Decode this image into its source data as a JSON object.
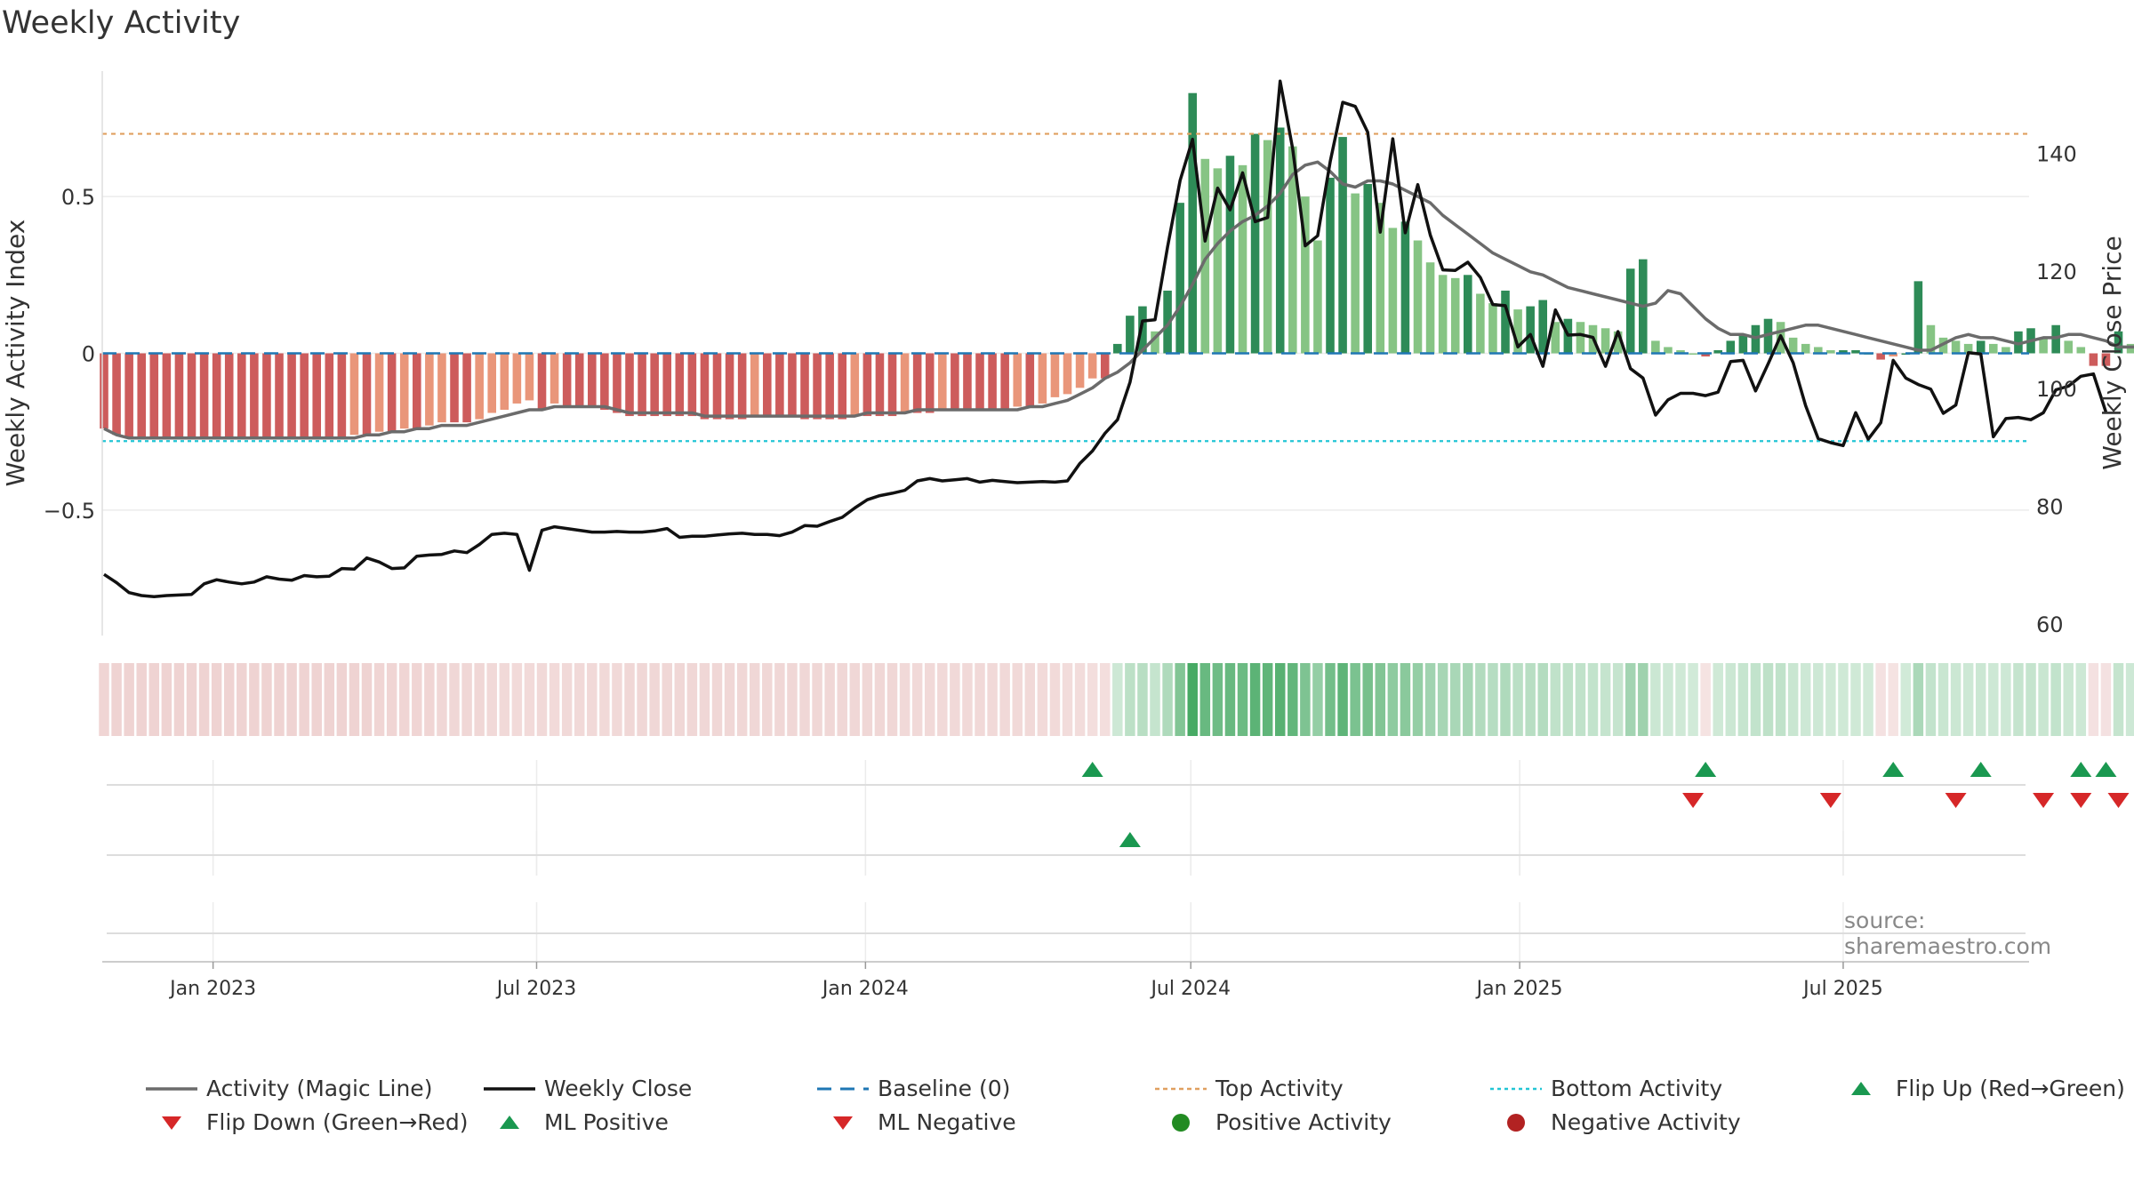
{
  "title": "Weekly Activity",
  "source": "source: sharemaestro.com",
  "colors": {
    "pos_dark": "#2e8b57",
    "pos_light": "#86c484",
    "neg_dark": "#cd5c5c",
    "neg_light": "#e9967a",
    "magic": "#6b6b6b",
    "close": "#111111",
    "baseline": "#1f77b4",
    "top": "#e0a060",
    "bottom": "#22c5d5",
    "up": "#1a9850",
    "down": "#d62728",
    "pos_dot": "#228b22",
    "neg_dot": "#b22222"
  },
  "chart_data": {
    "type": "bar",
    "title": "Weekly Activity",
    "ylabel": "Weekly Activity Index",
    "y2label": "Weekly Close Price",
    "ylim": [
      -0.9,
      0.9
    ],
    "y2lim": [
      58,
      154
    ],
    "yticks": [
      -0.5,
      0,
      0.5
    ],
    "ytick_labels": [
      "−0.5",
      "0",
      "0.5"
    ],
    "y2ticks": [
      60,
      80,
      100,
      120,
      140
    ],
    "xlim": [
      "2022-10-31",
      "2025-10-13"
    ],
    "xticks": [
      "2023-01-01",
      "2023-07-01",
      "2024-01-01",
      "2024-07-01",
      "2025-01-01",
      "2025-07-01"
    ],
    "xtick_labels": [
      "Jan 2023",
      "Jul 2023",
      "Jan 2024",
      "Jul 2024",
      "Jan 2025",
      "Jul 2025"
    ],
    "top_activity": 0.7,
    "bottom_activity": -0.28,
    "start_date": "2022-11-01",
    "activity": [
      -0.24,
      -0.26,
      -0.27,
      -0.27,
      -0.27,
      -0.27,
      -0.27,
      -0.27,
      -0.27,
      -0.27,
      -0.27,
      -0.27,
      -0.27,
      -0.27,
      -0.27,
      -0.27,
      -0.27,
      -0.27,
      -0.27,
      -0.27,
      -0.26,
      -0.26,
      -0.25,
      -0.25,
      -0.24,
      -0.24,
      -0.23,
      -0.22,
      -0.22,
      -0.22,
      -0.21,
      -0.19,
      -0.18,
      -0.16,
      -0.15,
      -0.18,
      -0.16,
      -0.17,
      -0.17,
      -0.17,
      -0.18,
      -0.19,
      -0.2,
      -0.2,
      -0.2,
      -0.2,
      -0.2,
      -0.2,
      -0.21,
      -0.21,
      -0.21,
      -0.21,
      -0.2,
      -0.2,
      -0.2,
      -0.2,
      -0.21,
      -0.21,
      -0.21,
      -0.21,
      -0.2,
      -0.2,
      -0.2,
      -0.2,
      -0.19,
      -0.19,
      -0.19,
      -0.18,
      -0.18,
      -0.18,
      -0.18,
      -0.18,
      -0.18,
      -0.17,
      -0.17,
      -0.16,
      -0.14,
      -0.13,
      -0.11,
      -0.08,
      -0.08,
      0.03,
      0.12,
      0.15,
      0.07,
      0.2,
      0.48,
      0.83,
      0.62,
      0.59,
      0.63,
      0.6,
      0.7,
      0.68,
      0.72,
      0.66,
      0.5,
      0.36,
      0.56,
      0.69,
      0.51,
      0.54,
      0.48,
      0.4,
      0.42,
      0.36,
      0.29,
      0.25,
      0.24,
      0.25,
      0.19,
      0.16,
      0.2,
      0.14,
      0.15,
      0.17,
      0.1,
      0.11,
      0.1,
      0.09,
      0.08,
      0.07,
      0.27,
      0.3,
      0.04,
      0.02,
      0.01,
      0.0,
      -0.01,
      0.01,
      0.04,
      0.06,
      0.09,
      0.11,
      0.1,
      0.05,
      0.03,
      0.02,
      0.01,
      0.01,
      0.01,
      0.0,
      -0.02,
      -0.01,
      0.0,
      0.23,
      0.09,
      0.05,
      0.04,
      0.03,
      0.04,
      0.03,
      0.02,
      0.07,
      0.08,
      0.05,
      0.09,
      0.04,
      0.02,
      -0.04,
      -0.04,
      0.07,
      0.03,
      0.02,
      -0.02
    ],
    "close": [
      68.4,
      67,
      65.3,
      64.8,
      64.6,
      64.8,
      64.9,
      65,
      66.8,
      67.5,
      67.1,
      66.8,
      67.1,
      68,
      67.6,
      67.4,
      68.2,
      68,
      68.1,
      69.4,
      69.3,
      71.2,
      70.5,
      69.4,
      69.5,
      71.5,
      71.7,
      71.8,
      72.4,
      72.1,
      73.5,
      75.2,
      75.4,
      75.2,
      69.1,
      75.9,
      76.5,
      76.2,
      75.9,
      75.6,
      75.6,
      75.7,
      75.6,
      75.6,
      75.8,
      76.2,
      74.7,
      74.9,
      74.9,
      75.1,
      75.3,
      75.4,
      75.2,
      75.2,
      75,
      75.6,
      76.7,
      76.6,
      77.4,
      78.1,
      79.7,
      81.1,
      81.8,
      82.2,
      82.7,
      84.3,
      84.7,
      84.3,
      84.5,
      84.7,
      84.1,
      84.4,
      84.2,
      84,
      84.1,
      84.2,
      84.1,
      84.3,
      87.3,
      89.4,
      92.4,
      94.7,
      101.1,
      111.5,
      111.7,
      124.1,
      135.4,
      142.4,
      125.1,
      134.1,
      130.4,
      136.7,
      128.4,
      129.1,
      152.3,
      140.8,
      124.3,
      126,
      138.6,
      148.7,
      148,
      143.6,
      126.6,
      142.5,
      126.5,
      134.7,
      126.1,
      120.2,
      120.1,
      121.5,
      118.9,
      114.3,
      114.1,
      107.1,
      109.2,
      103.8,
      113.4,
      109.1,
      109.2,
      108.7,
      103.8,
      109.7,
      103.4,
      101.8,
      95.5,
      98.1,
      99.2,
      99.2,
      98.8,
      99.4,
      104.6,
      104.8,
      99.6,
      104.2,
      109,
      104.4,
      97.1,
      91.5,
      90.8,
      90.3,
      95.9,
      91.4,
      94.2,
      104.8,
      101.8,
      100.7,
      99.9,
      95.8,
      97.2,
      106.1,
      105.9,
      91.8,
      94.9,
      95.1,
      94.7,
      95.9,
      99.8,
      100.4,
      102.1,
      102.5,
      96
    ],
    "magic_line": [
      -0.24,
      -0.26,
      -0.27,
      -0.27,
      -0.27,
      -0.27,
      -0.27,
      -0.27,
      -0.27,
      -0.27,
      -0.27,
      -0.27,
      -0.27,
      -0.27,
      -0.27,
      -0.27,
      -0.27,
      -0.27,
      -0.27,
      -0.27,
      -0.27,
      -0.26,
      -0.26,
      -0.25,
      -0.25,
      -0.24,
      -0.24,
      -0.23,
      -0.23,
      -0.23,
      -0.22,
      -0.21,
      -0.2,
      -0.19,
      -0.18,
      -0.18,
      -0.17,
      -0.17,
      -0.17,
      -0.17,
      -0.17,
      -0.18,
      -0.19,
      -0.19,
      -0.19,
      -0.19,
      -0.19,
      -0.19,
      -0.2,
      -0.2,
      -0.2,
      -0.2,
      -0.2,
      -0.2,
      -0.2,
      -0.2,
      -0.2,
      -0.2,
      -0.2,
      -0.2,
      -0.2,
      -0.19,
      -0.19,
      -0.19,
      -0.19,
      -0.18,
      -0.18,
      -0.18,
      -0.18,
      -0.18,
      -0.18,
      -0.18,
      -0.18,
      -0.18,
      -0.17,
      -0.17,
      -0.16,
      -0.15,
      -0.13,
      -0.11,
      -0.08,
      -0.06,
      -0.03,
      0.01,
      0.05,
      0.09,
      0.15,
      0.22,
      0.3,
      0.35,
      0.39,
      0.42,
      0.44,
      0.47,
      0.51,
      0.57,
      0.6,
      0.61,
      0.58,
      0.54,
      0.53,
      0.55,
      0.55,
      0.54,
      0.52,
      0.5,
      0.48,
      0.44,
      0.41,
      0.38,
      0.35,
      0.32,
      0.3,
      0.28,
      0.26,
      0.25,
      0.23,
      0.21,
      0.2,
      0.19,
      0.18,
      0.17,
      0.16,
      0.15,
      0.16,
      0.2,
      0.19,
      0.15,
      0.11,
      0.08,
      0.06,
      0.06,
      0.05,
      0.06,
      0.07,
      0.08,
      0.09,
      0.09,
      0.08,
      0.07,
      0.06,
      0.05,
      0.04,
      0.03,
      0.02,
      0.01,
      0.01,
      0.03,
      0.05,
      0.06,
      0.05,
      0.05,
      0.04,
      0.03,
      0.04,
      0.05,
      0.05,
      0.06,
      0.06,
      0.05,
      0.04,
      0.02,
      0.02,
      0.02,
      0.01
    ],
    "flip_up_weeks": [
      79,
      128,
      143,
      150,
      158,
      160
    ],
    "flip_down_weeks": [
      127,
      138,
      148,
      155,
      158,
      161
    ],
    "ml_positive_weeks": [
      82
    ],
    "ml_negative_weeks": []
  },
  "legend": [
    {
      "key": "magic",
      "label": "Activity (Magic Line)"
    },
    {
      "key": "close",
      "label": "Weekly Close"
    },
    {
      "key": "baseline",
      "label": "Baseline (0)"
    },
    {
      "key": "top",
      "label": "Top Activity"
    },
    {
      "key": "bottom",
      "label": "Bottom Activity"
    },
    {
      "key": "flip_up",
      "label": "Flip Up (Red→Green)"
    },
    {
      "key": "flip_down",
      "label": "Flip Down (Green→Red)"
    },
    {
      "key": "ml_pos",
      "label": "ML Positive"
    },
    {
      "key": "ml_neg",
      "label": "ML Negative"
    },
    {
      "key": "pos_act",
      "label": "Positive Activity"
    },
    {
      "key": "neg_act",
      "label": "Negative Activity"
    }
  ]
}
